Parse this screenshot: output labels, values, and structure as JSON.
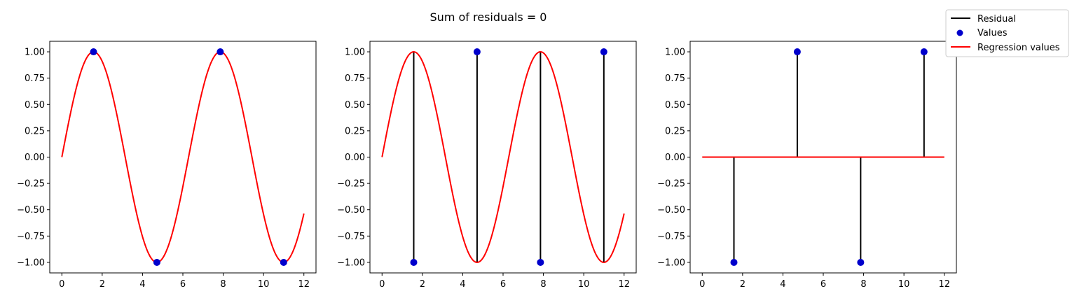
{
  "figure": {
    "title": "Sum of residuals = 0"
  },
  "colors": {
    "residual": "#000000",
    "values": "#0000cc",
    "regression": "#ff0000",
    "axes": "#000000",
    "legend_border": "#cccccc"
  },
  "legend": {
    "placement": "top-right",
    "entries": [
      {
        "label": "Residual",
        "kind": "line",
        "color": "#000000"
      },
      {
        "label": "Values",
        "kind": "marker",
        "color": "#0000cc"
      },
      {
        "label": "Regression values",
        "kind": "line",
        "color": "#ff0000"
      }
    ]
  },
  "chart_data": [
    {
      "type": "line",
      "xlim": [
        -0.6,
        12.6
      ],
      "ylim": [
        -1.1,
        1.1
      ],
      "xticks": [
        0,
        2,
        4,
        6,
        8,
        10,
        12
      ],
      "yticks": [
        -1.0,
        -0.75,
        -0.5,
        -0.25,
        0.0,
        0.25,
        0.5,
        0.75,
        1.0
      ],
      "xtick_labels": [
        "0",
        "2",
        "4",
        "6",
        "8",
        "10",
        "12"
      ],
      "ytick_labels": [
        "−1.00",
        "−0.75",
        "−0.50",
        "−0.25",
        "0.00",
        "0.25",
        "0.50",
        "0.75",
        "1.00"
      ],
      "curve": {
        "function": "sin",
        "x_range": [
          0,
          12
        ]
      },
      "points": {
        "x": [
          1.571,
          4.712,
          7.854,
          10.996
        ],
        "y": [
          1,
          -1,
          1,
          -1
        ]
      },
      "residuals": [],
      "grid": false
    },
    {
      "type": "line",
      "xlim": [
        -0.6,
        12.6
      ],
      "ylim": [
        -1.1,
        1.1
      ],
      "xticks": [
        0,
        2,
        4,
        6,
        8,
        10,
        12
      ],
      "yticks": [
        -1.0,
        -0.75,
        -0.5,
        -0.25,
        0.0,
        0.25,
        0.5,
        0.75,
        1.0
      ],
      "xtick_labels": [
        "0",
        "2",
        "4",
        "6",
        "8",
        "10",
        "12"
      ],
      "ytick_labels": [
        "−1.00",
        "−0.75",
        "−0.50",
        "−0.25",
        "0.00",
        "0.25",
        "0.50",
        "0.75",
        "1.00"
      ],
      "curve": {
        "function": "sin",
        "x_range": [
          0,
          12
        ]
      },
      "points": {
        "x": [
          1.571,
          4.712,
          7.854,
          10.996
        ],
        "y": [
          -1,
          1,
          -1,
          1
        ]
      },
      "residuals": [
        {
          "x": 1.571,
          "y0": 1,
          "y1": -1
        },
        {
          "x": 4.712,
          "y0": -1,
          "y1": 1
        },
        {
          "x": 7.854,
          "y0": 1,
          "y1": -1
        },
        {
          "x": 10.996,
          "y0": -1,
          "y1": 1
        }
      ],
      "grid": false
    },
    {
      "type": "line",
      "xlim": [
        -0.6,
        12.6
      ],
      "ylim": [
        -1.1,
        1.1
      ],
      "xticks": [
        0,
        2,
        4,
        6,
        8,
        10,
        12
      ],
      "yticks": [
        -1.0,
        -0.75,
        -0.5,
        -0.25,
        0.0,
        0.25,
        0.5,
        0.75,
        1.0
      ],
      "xtick_labels": [
        "0",
        "2",
        "4",
        "6",
        "8",
        "10",
        "12"
      ],
      "ytick_labels": [
        "−1.00",
        "−0.75",
        "−0.50",
        "−0.25",
        "0.00",
        "0.25",
        "0.50",
        "0.75",
        "1.00"
      ],
      "curve": {
        "function": "zero",
        "x_range": [
          0,
          12
        ]
      },
      "points": {
        "x": [
          1.571,
          4.712,
          7.854,
          10.996
        ],
        "y": [
          -1,
          1,
          -1,
          1
        ]
      },
      "residuals": [
        {
          "x": 1.571,
          "y0": 0,
          "y1": -1
        },
        {
          "x": 4.712,
          "y0": 0,
          "y1": 1
        },
        {
          "x": 7.854,
          "y0": 0,
          "y1": -1
        },
        {
          "x": 10.996,
          "y0": 0,
          "y1": 1
        }
      ],
      "grid": false
    }
  ]
}
